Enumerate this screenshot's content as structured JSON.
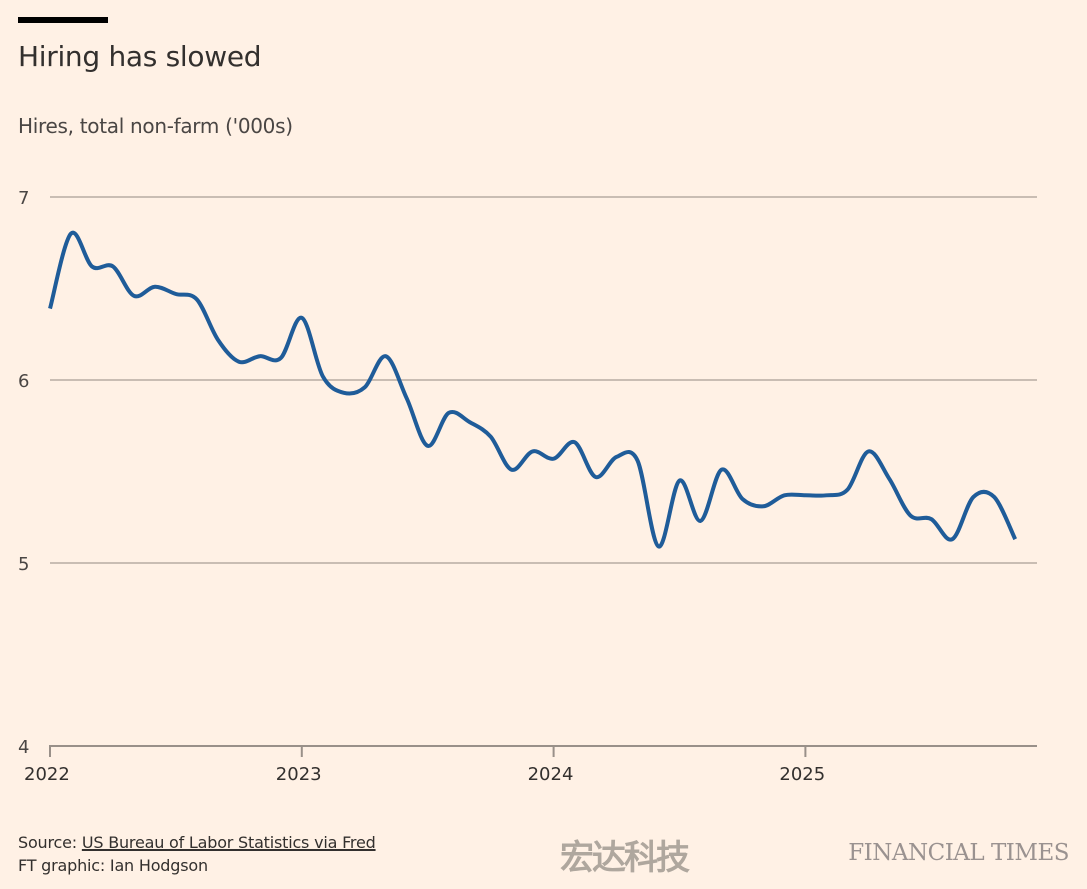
{
  "header": {
    "title": "Hiring has slowed",
    "subtitle": "Hires, total non-farm ('000s)"
  },
  "footer": {
    "source_prefix": "Source: ",
    "source_link": "US Bureau of Labor Statistics via Fred",
    "credit": "FT graphic: Ian Hodgson",
    "brand": "FINANCIAL TIMES",
    "watermark": "宏达科技"
  },
  "colors": {
    "background": "#fff1e5",
    "line": "#1f5c99",
    "grid": "#c9bdb3",
    "axis": "#999089"
  },
  "chart_data": {
    "type": "line",
    "title": "Hiring has slowed",
    "subtitle": "Hires, total non-farm ('000s)",
    "xlabel": "",
    "ylabel": "",
    "ylim": [
      4,
      7
    ],
    "yticks": [
      4,
      5,
      6,
      7
    ],
    "ytick_labels": [
      "4",
      "5",
      "6",
      "7"
    ],
    "xlim": [
      "2022-01",
      "2025-12"
    ],
    "xticks": [
      "2022",
      "2023",
      "2024",
      "2025"
    ],
    "grid": true,
    "legend": "none",
    "series": [
      {
        "name": "Hires, total non-farm",
        "x": [
          "2022-01",
          "2022-02",
          "2022-03",
          "2022-04",
          "2022-05",
          "2022-06",
          "2022-07",
          "2022-08",
          "2022-09",
          "2022-10",
          "2022-11",
          "2022-12",
          "2023-01",
          "2023-02",
          "2023-03",
          "2023-04",
          "2023-05",
          "2023-06",
          "2023-07",
          "2023-08",
          "2023-09",
          "2023-10",
          "2023-11",
          "2023-12",
          "2024-01",
          "2024-02",
          "2024-03",
          "2024-04",
          "2024-05",
          "2024-06",
          "2024-07",
          "2024-08",
          "2024-09",
          "2024-10",
          "2024-11",
          "2024-12",
          "2025-01",
          "2025-02",
          "2025-03",
          "2025-04",
          "2025-05",
          "2025-06",
          "2025-07",
          "2025-08",
          "2025-09",
          "2025-10",
          "2025-11"
        ],
        "values": [
          6.39,
          6.8,
          6.62,
          6.62,
          6.46,
          6.51,
          6.47,
          6.44,
          6.22,
          6.1,
          6.13,
          6.12,
          6.34,
          6.02,
          5.93,
          5.96,
          6.13,
          5.9,
          5.64,
          5.82,
          5.77,
          5.69,
          5.51,
          5.61,
          5.57,
          5.66,
          5.47,
          5.58,
          5.56,
          5.09,
          5.45,
          5.23,
          5.51,
          5.35,
          5.31,
          5.37,
          5.37,
          5.37,
          5.4,
          5.61,
          5.46,
          5.26,
          5.24,
          5.13,
          5.36,
          5.36,
          5.13
        ]
      }
    ]
  }
}
